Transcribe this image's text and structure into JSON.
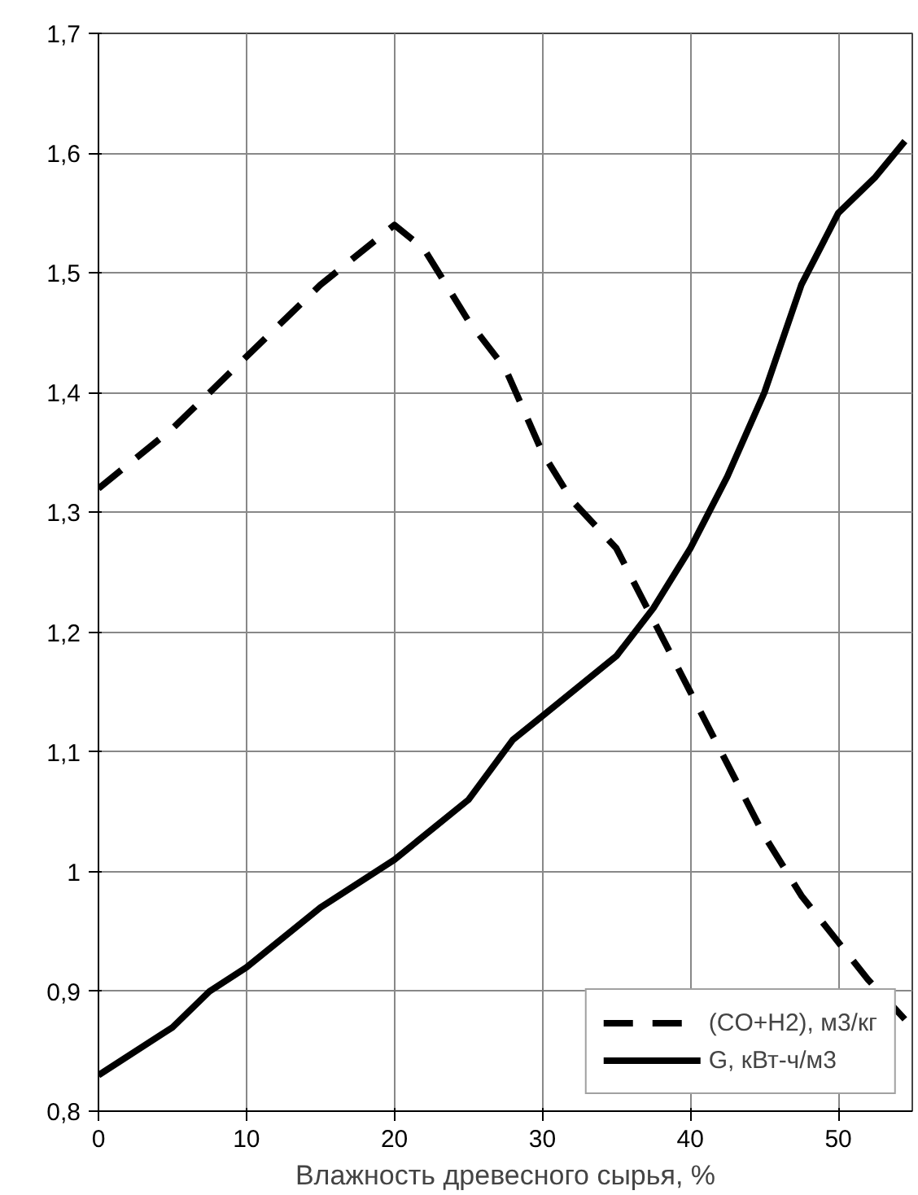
{
  "chart_data": {
    "type": "line",
    "xlabel": "Влажность древесного сырья, %",
    "xlim": [
      0,
      55
    ],
    "xticks": [
      0,
      10,
      20,
      30,
      40,
      50
    ],
    "ylim": [
      0.8,
      1.7
    ],
    "yticks": [
      {
        "value": 0.8,
        "label": "0,8"
      },
      {
        "value": 0.9,
        "label": "0,9"
      },
      {
        "value": 1.0,
        "label": "1"
      },
      {
        "value": 1.1,
        "label": "1,1"
      },
      {
        "value": 1.2,
        "label": "1,2"
      },
      {
        "value": 1.3,
        "label": "1,3"
      },
      {
        "value": 1.4,
        "label": "1,4"
      },
      {
        "value": 1.5,
        "label": "1,5"
      },
      {
        "value": 1.6,
        "label": "1,6"
      },
      {
        "value": 1.7,
        "label": "1,7"
      }
    ],
    "grid": true,
    "legend": "bottom right",
    "series": [
      {
        "name": "(CO+H2), м3/кг",
        "color": "#000000",
        "line_style": "dashed",
        "x": [
          0,
          5,
          7.5,
          10,
          15,
          20,
          22,
          25,
          27.5,
          30,
          32,
          35,
          37.5,
          40,
          45,
          47.5,
          52,
          55
        ],
        "values": [
          1.32,
          1.37,
          1.4,
          1.43,
          1.49,
          1.54,
          1.52,
          1.46,
          1.42,
          1.35,
          1.31,
          1.27,
          1.21,
          1.15,
          1.03,
          0.98,
          0.91,
          0.87
        ]
      },
      {
        "name": "G, кВт-ч/м3",
        "color": "#000000",
        "line_style": "solid",
        "x": [
          0,
          5,
          7.5,
          10,
          15,
          20,
          25,
          28,
          30,
          35,
          37.5,
          40,
          42.5,
          45,
          47.5,
          50,
          52.5,
          54.5
        ],
        "values": [
          0.83,
          0.87,
          0.9,
          0.92,
          0.97,
          1.01,
          1.06,
          1.11,
          1.13,
          1.18,
          1.22,
          1.27,
          1.33,
          1.4,
          1.49,
          1.55,
          1.58,
          1.61
        ]
      }
    ]
  }
}
